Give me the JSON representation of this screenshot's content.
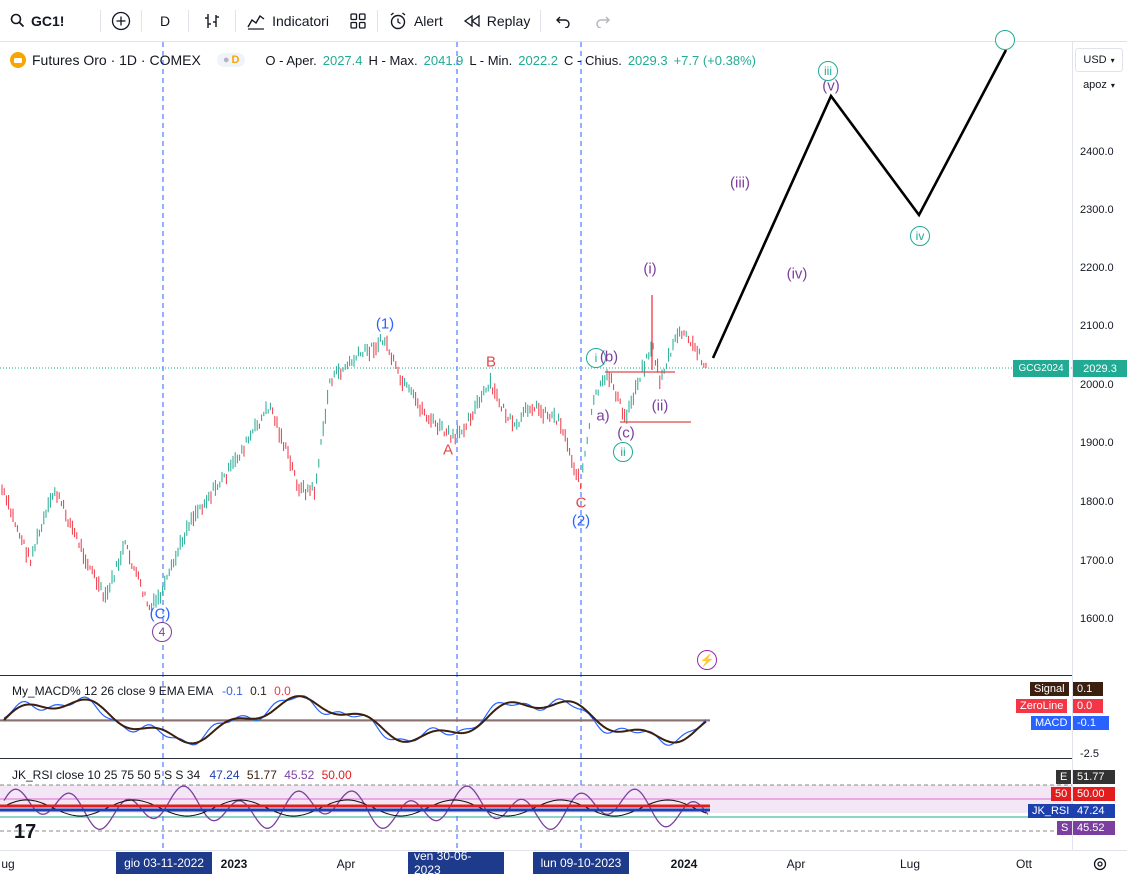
{
  "toolbar": {
    "symbol": "GC1!",
    "interval": "D",
    "indicators_label": "Indicatori",
    "alert_label": "Alert",
    "replay_label": "Replay"
  },
  "legend": {
    "title": "Futures Oro · 1D · COMEX",
    "pill_d": "D",
    "open_label": "O - Aper.",
    "open": "2027.4",
    "high_label": "H - Max.",
    "high": "2041.9",
    "low_label": "L - Min.",
    "low": "2022.2",
    "close_label": "C - Chius.",
    "close": "2029.3",
    "change": "+7.7 (+0.38%)"
  },
  "price_scale": {
    "currency": "USD",
    "mode": "apoz",
    "ticks": [
      "2400.0",
      "2300.0",
      "2200.0",
      "2100.0",
      "2000.0",
      "1900.0",
      "1800.0",
      "1700.0",
      "1600.0"
    ],
    "last_price": "2029.3",
    "symbol_tag": "GCG2024"
  },
  "waves": {
    "w1": "(1)",
    "w2": "(2)",
    "wC_big": "(C)",
    "w4": "4",
    "A": "A",
    "B": "B",
    "C": "C",
    "i_small": "i",
    "b": "(b)",
    "a": "a)",
    "c": "(c)",
    "ii_small": "ii",
    "i_purple": "(i)",
    "ii_purple": "(ii)",
    "iii_purple": "(iii)",
    "iv_purple": "(iv)",
    "v_purple": "(v)",
    "iii_circ": "iii",
    "iv_circ": "iv"
  },
  "macd": {
    "legend_name": "My_MACD% 12 26 close 9 EMA EMA",
    "v1": "-0.1",
    "v2": "0.1",
    "v3": "0.0",
    "signal_label": "Signal",
    "signal_val": "0.1",
    "zero_label": "ZeroLine",
    "zero_val": "0.0",
    "macd_label": "MACD",
    "macd_val": "-0.1",
    "tick": "-2.5"
  },
  "rsi": {
    "legend_name": "JK_RSI close 10 25 75 50 5 S S 34",
    "v1": "47.24",
    "v2": "51.77",
    "v3": "45.52",
    "v4": "50.00",
    "e_label": "E",
    "e_val": "51.77",
    "l50_label": "50",
    "l50_val": "50.00",
    "rsi_label": "JK_RSI",
    "rsi_val": "47.24",
    "s_label": "S",
    "s_val": "45.52"
  },
  "time_axis": {
    "labels": [
      "ug",
      "2023",
      "Apr",
      "2024",
      "Apr",
      "Lug",
      "Ott"
    ],
    "highlight1": "gio 03-11-2022",
    "highlight2": "ven 30-06-2023",
    "highlight3": "lun 09-10-2023"
  },
  "colors": {
    "up": "#22ab94",
    "down": "#f23645",
    "wave_blue": "#2962ff",
    "wave_purple": "#7b3fa0",
    "wave_red": "#e04848",
    "accent_dark": "#1e3a8a"
  }
}
